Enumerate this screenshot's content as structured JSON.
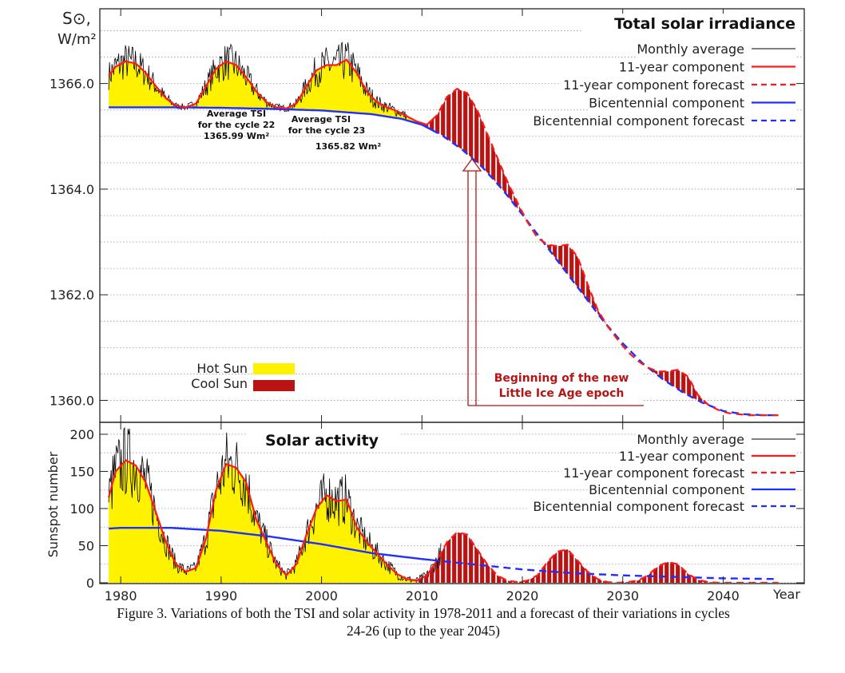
{
  "colors": {
    "hot_sun": "#fff200",
    "cool_sun": "#b81414",
    "monthly": "#000000",
    "eleven_year": "#ff1a1a",
    "bicentennial": "#1f2fff",
    "frame": "#222222"
  },
  "x_axis": {
    "range": [
      1978,
      2048
    ],
    "ticks": [
      1980,
      1990,
      2000,
      2010,
      2020,
      2030,
      2040
    ],
    "tick_labels": [
      "1980",
      "1990",
      "2000",
      "2010",
      "2020",
      "2030",
      "2040"
    ],
    "label": "Year"
  },
  "caption": {
    "line1": "Figure 3. Variations of both the TSI and solar activity in 1978-2011 and a forecast of their variations in cycles",
    "line2": "24-26 (up to the year 2045)"
  },
  "chart_data": [
    {
      "type": "area",
      "title": "Total solar irradiance",
      "ylabel_line1": "S⊙,",
      "ylabel_line2": "W/m²",
      "ylim": [
        1359.6,
        1367.4
      ],
      "yticks": [
        1360.0,
        1362.0,
        1364.0,
        1366.0
      ],
      "ytick_labels": [
        "1360.0",
        "1362.0",
        "1364.0",
        "1366.0"
      ],
      "grid": "horizontal dotted",
      "legend_position": "top-right",
      "legend": [
        {
          "label": "Monthly average",
          "style": "thin-black"
        },
        {
          "label": "11-year component",
          "style": "red-solid"
        },
        {
          "label": "11-year component forecast",
          "style": "red-dashed"
        },
        {
          "label": "Bicentennial component",
          "style": "blue-solid"
        },
        {
          "label": "Bicentennial component forecast",
          "style": "blue-dashed"
        }
      ],
      "fill_legend": [
        {
          "label": "Hot Sun",
          "color": "#fff200"
        },
        {
          "label": "Cool Sun",
          "color": "#b81414"
        }
      ],
      "annotations": [
        {
          "lines": [
            "Average TSI",
            "for the cycle 22",
            "1365.99 Wm²"
          ]
        },
        {
          "lines": [
            "Average TSI",
            "for the cycle 23",
            "1365.82 Wm²"
          ]
        },
        {
          "lines": [
            "Beginning of the new",
            "Little Ice Age epoch"
          ],
          "at_x": 2014
        }
      ],
      "series": [
        {
          "name": "11-year component",
          "x": [
            1978.8,
            1979.5,
            1980.5,
            1981.5,
            1982.5,
            1983.5,
            1984.5,
            1985.5,
            1986.5,
            1987.5,
            1988.5,
            1989.5,
            1990.5,
            1991.5,
            1992.5,
            1993.5,
            1994.5,
            1995.5,
            1996.5,
            1997.5,
            1998.5,
            1999.5,
            2000.5,
            2001.5,
            2002.5,
            2003.5,
            2004.5,
            2005.5,
            2006.5,
            2007.5,
            2008.5,
            2009.5,
            2010.5,
            2011.5,
            2012.5,
            2013.5,
            2014.5,
            2015.5,
            2016.5,
            2017.5,
            2018.5,
            2019.5,
            2020.5,
            2021.5,
            2022.5,
            2023.5,
            2024.5,
            2025.5,
            2026.5,
            2027.5,
            2028.5,
            2029.5,
            2030.5,
            2031.5,
            2032.5,
            2033.5,
            2034.5,
            2035.5,
            2036.5,
            2037.5,
            2038.5,
            2039.5,
            2040.5,
            2041.5,
            2042.5,
            2043.5,
            2044.5,
            2045.5
          ],
          "y": [
            1366.15,
            1366.32,
            1366.42,
            1366.38,
            1366.2,
            1365.95,
            1365.72,
            1365.58,
            1365.55,
            1365.62,
            1365.95,
            1366.28,
            1366.42,
            1366.35,
            1366.12,
            1365.85,
            1365.65,
            1365.55,
            1365.53,
            1365.62,
            1365.95,
            1366.25,
            1366.35,
            1366.35,
            1366.45,
            1366.2,
            1365.85,
            1365.65,
            1365.55,
            1365.48,
            1365.38,
            1365.28,
            1365.22,
            1365.4,
            1365.75,
            1365.9,
            1365.82,
            1365.5,
            1365.05,
            1364.6,
            1364.15,
            1363.75,
            1363.38,
            1363.08,
            1362.95,
            1362.92,
            1362.95,
            1362.72,
            1362.2,
            1361.72,
            1361.4,
            1361.15,
            1360.92,
            1360.75,
            1360.62,
            1360.55,
            1360.55,
            1360.58,
            1360.45,
            1360.1,
            1359.92,
            1359.82,
            1359.76,
            1359.74,
            1359.72,
            1359.72,
            1359.72,
            1359.72
          ],
          "forecast_from": 2011
        },
        {
          "name": "Bicentennial component",
          "x": [
            1978.8,
            1980,
            1985,
            1990,
            1995,
            2000,
            2005,
            2008,
            2010,
            2012,
            2014,
            2016,
            2018,
            2020,
            2022,
            2024,
            2026,
            2028,
            2030,
            2032,
            2034,
            2036,
            2038,
            2040,
            2042,
            2044,
            2045.5
          ],
          "y": [
            1365.55,
            1365.55,
            1365.55,
            1365.54,
            1365.52,
            1365.49,
            1365.42,
            1365.33,
            1365.22,
            1365.02,
            1364.75,
            1364.42,
            1364.0,
            1363.52,
            1363.02,
            1362.52,
            1362.02,
            1361.52,
            1361.08,
            1360.7,
            1360.4,
            1360.15,
            1359.95,
            1359.8,
            1359.74,
            1359.72,
            1359.72
          ],
          "forecast_from": 2011
        }
      ]
    },
    {
      "type": "area",
      "title": "Solar activity",
      "ylabel": "Sunspot number",
      "ylim": [
        0,
        215
      ],
      "yticks": [
        0,
        50,
        100,
        150,
        200
      ],
      "ytick_labels": [
        "0",
        "50",
        "100",
        "150",
        "200"
      ],
      "grid": "horizontal dotted",
      "legend_position": "top-right",
      "legend": [
        {
          "label": "Monthly average",
          "style": "thin-black"
        },
        {
          "label": "11-year component",
          "style": "red-solid"
        },
        {
          "label": "11-year component forecast",
          "style": "red-dashed"
        },
        {
          "label": "Bicentennial component",
          "style": "blue-solid"
        },
        {
          "label": "Bicentennial component forecast",
          "style": "blue-dashed"
        }
      ],
      "series": [
        {
          "name": "11-year component",
          "x": [
            1978.8,
            1979.5,
            1980.5,
            1981.5,
            1982.5,
            1983.5,
            1984.5,
            1985.5,
            1986.5,
            1987.5,
            1988.5,
            1989.5,
            1990.5,
            1991.5,
            1992.5,
            1993.5,
            1994.5,
            1995.5,
            1996.5,
            1997.5,
            1998.5,
            1999.5,
            2000.5,
            2001.5,
            2002.5,
            2003.5,
            2004.5,
            2005.5,
            2006.5,
            2007.5,
            2008.5,
            2009.5,
            2010.5,
            2011.5,
            2012.5,
            2013.5,
            2014.5,
            2015.5,
            2016.5,
            2017.5,
            2018.5,
            2019.5,
            2020.5,
            2021.5,
            2022.5,
            2023.5,
            2024.5,
            2025.5,
            2026.5,
            2027.5,
            2028.5,
            2029.5,
            2030.5,
            2031.5,
            2032.5,
            2033.5,
            2034.5,
            2035.5,
            2036.5,
            2037.5,
            2038.5,
            2039.5,
            2040.5,
            2041.5,
            2042.5,
            2043.5,
            2044.5,
            2045.5
          ],
          "y": [
            115,
            150,
            165,
            158,
            135,
            95,
            55,
            25,
            15,
            20,
            60,
            125,
            160,
            155,
            135,
            85,
            55,
            25,
            10,
            25,
            65,
            100,
            118,
            110,
            112,
            75,
            55,
            40,
            25,
            12,
            5,
            3,
            10,
            30,
            55,
            68,
            65,
            45,
            25,
            10,
            3,
            1,
            3,
            10,
            28,
            42,
            45,
            30,
            15,
            5,
            1,
            0,
            1,
            3,
            10,
            22,
            28,
            25,
            12,
            4,
            1,
            0,
            0,
            0,
            0,
            0,
            0,
            0
          ],
          "forecast_from": 2011
        },
        {
          "name": "Bicentennial component",
          "x": [
            1978.8,
            1980,
            1985,
            1990,
            1995,
            2000,
            2005,
            2010,
            2015,
            2020,
            2025,
            2030,
            2035,
            2040,
            2045.5
          ],
          "y": [
            73,
            74,
            74,
            70,
            62,
            52,
            40,
            32,
            25,
            18,
            13,
            10,
            8,
            6,
            5
          ],
          "forecast_from": 2011
        }
      ]
    }
  ]
}
